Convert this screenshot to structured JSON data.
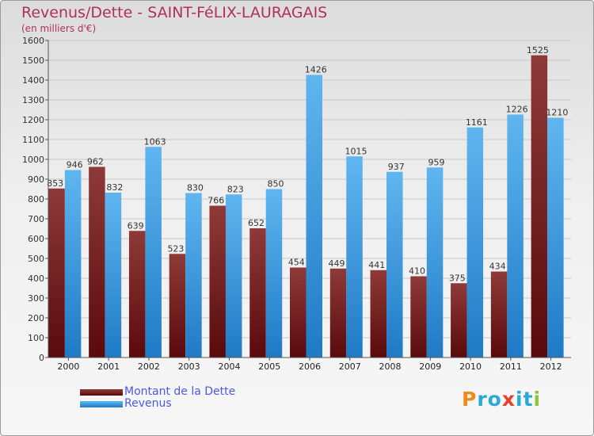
{
  "title": "Revenus/Dette - SAINT-FéLIX-LAURAGAIS",
  "subtitle": "(en milliers d'€)",
  "colors": {
    "title": "#b0305c",
    "legend_text": "#4a5ae8",
    "dette_dark": "#5a0a0c",
    "dette_light": "#8e3a38",
    "revenus_dark": "#1f7ac6",
    "revenus_light": "#5fb6ef",
    "grid": "#c8c8c8"
  },
  "chart_data": {
    "type": "bar",
    "categories": [
      "2000",
      "2001",
      "2002",
      "2003",
      "2004",
      "2005",
      "2006",
      "2007",
      "2008",
      "2009",
      "2010",
      "2011",
      "2012"
    ],
    "series": [
      {
        "name": "Montant de la Dette",
        "values": [
          853,
          962,
          639,
          523,
          766,
          652,
          454,
          449,
          441,
          410,
          375,
          434,
          1525
        ]
      },
      {
        "name": "Revenus",
        "values": [
          946,
          832,
          1063,
          830,
          823,
          850,
          1426,
          1015,
          937,
          959,
          1161,
          1226,
          1210
        ]
      }
    ],
    "ylim": [
      0,
      1600
    ],
    "yticks": [
      0,
      100,
      200,
      300,
      400,
      500,
      600,
      700,
      800,
      900,
      1000,
      1100,
      1200,
      1300,
      1400,
      1500,
      1600
    ],
    "grid": true,
    "legend_position": "bottom-left"
  },
  "legend": [
    {
      "label": "Montant de la Dette"
    },
    {
      "label": "Revenus"
    }
  ],
  "logo": {
    "text": "Proxiti"
  }
}
